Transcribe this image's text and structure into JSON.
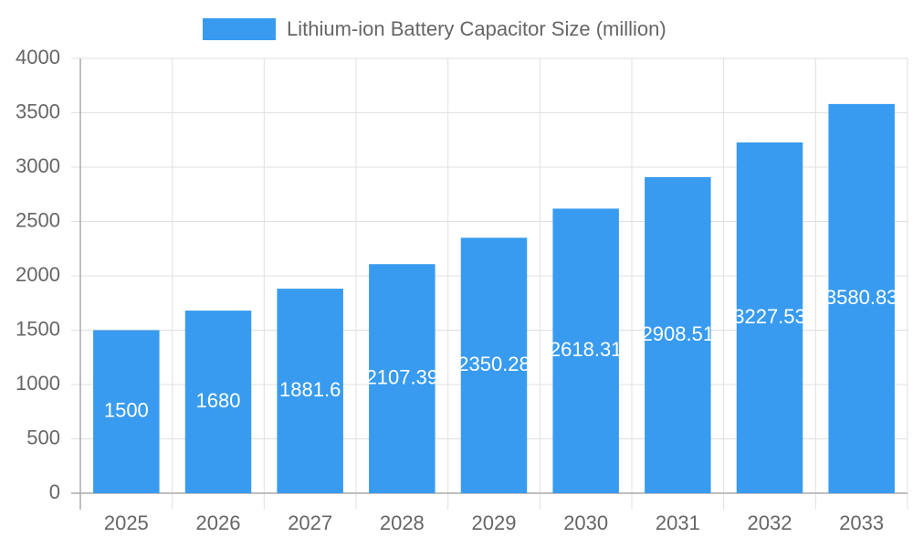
{
  "chart_data": {
    "type": "bar",
    "categories": [
      "2025",
      "2026",
      "2027",
      "2028",
      "2029",
      "2030",
      "2031",
      "2032",
      "2033"
    ],
    "series": [
      {
        "name": "Lithium-ion Battery Capacitor Size (million)",
        "color": "#389bef",
        "values": [
          1500,
          1680,
          1881.6,
          2107.39,
          2350.28,
          2618.31,
          2908.51,
          3227.53,
          3580.83
        ]
      }
    ],
    "ylim": [
      0,
      4000
    ],
    "yticks": [
      0,
      500,
      1000,
      1500,
      2000,
      2500,
      3000,
      3500,
      4000
    ],
    "grid": true,
    "legend": "top"
  }
}
